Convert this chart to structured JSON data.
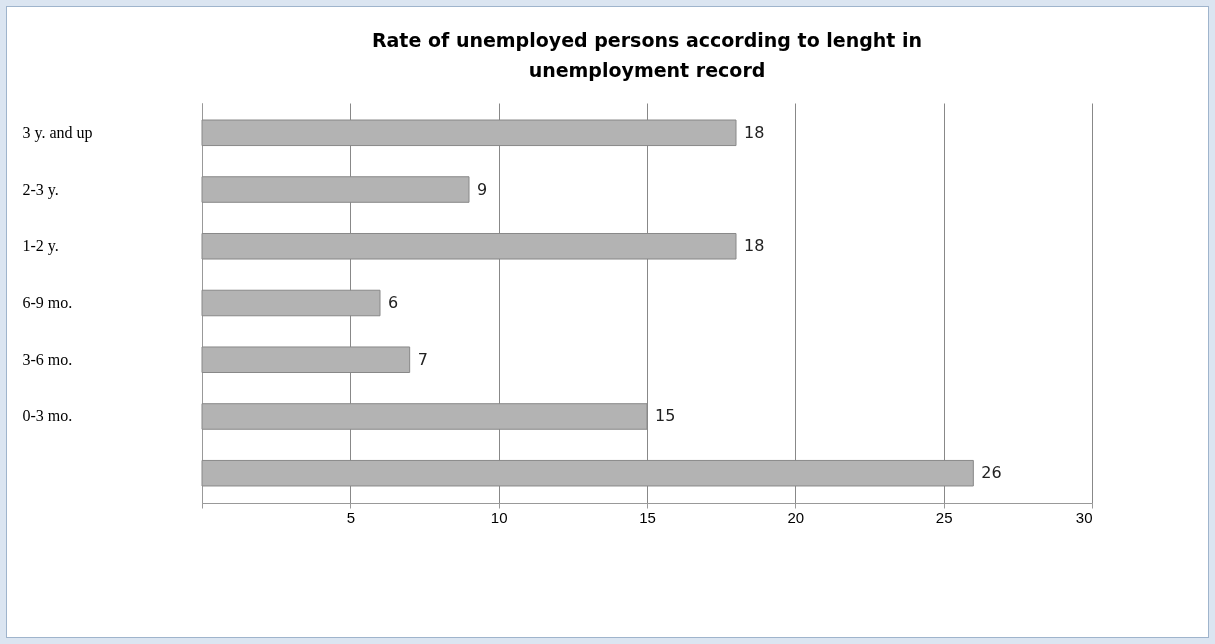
{
  "chart_data": {
    "type": "bar",
    "orientation": "horizontal",
    "title": "Rate of unemployed persons according to lenght in unemployment record",
    "categories": [
      "3 y. and up",
      "2-3 y.",
      "1-2 y.",
      "6-9 mo.",
      "3-6 mo.",
      "0-3 mo.",
      null
    ],
    "values": [
      18,
      9,
      18,
      6,
      7,
      15,
      26
    ],
    "color": "#b3b3b3",
    "xlim": [
      0,
      30
    ],
    "xticks": [
      {
        "value": 0,
        "label": null
      },
      5,
      10,
      15,
      20,
      25,
      30
    ],
    "grid": true,
    "data_labels": true
  }
}
